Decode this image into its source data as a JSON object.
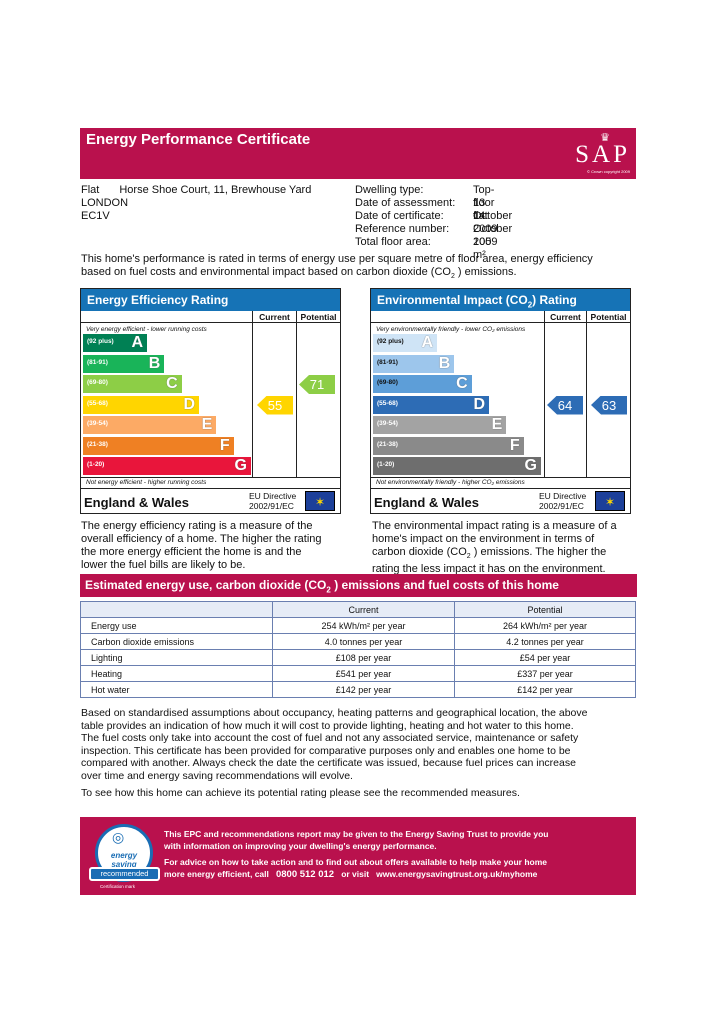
{
  "header": {
    "title": "Energy Performance Certificate",
    "logo_text": "SAP",
    "logo_copyright": "© Crown copyright 2009"
  },
  "address": {
    "line1": "Flat",
    "line1b": "Horse Shoe Court, 11, Brewhouse Yard",
    "line2": "LONDON",
    "line3": "EC1V"
  },
  "details": [
    {
      "label": "Dwelling type:",
      "value": "Top-floor flat"
    },
    {
      "label": "Date of assessment:",
      "value": "13 October 2009"
    },
    {
      "label": "Date of certificate:",
      "value": "14 October 2009"
    },
    {
      "label": "Reference number:",
      "value": ""
    },
    {
      "label": "Total floor area:",
      "value": "105 m²"
    }
  ],
  "intro": {
    "line1": "This home's performance is rated in terms of energy use per square metre of floor area, energy efficiency",
    "line2": "based on fuel costs and environmental impact based on carbon dioxide (CO",
    "sub": "2",
    "line2_end": ") emissions."
  },
  "efficiency": {
    "title": "Energy Efficiency Rating",
    "col_current": "Current",
    "col_potential": "Potential",
    "top_caption": "Very energy efficient - lower running costs",
    "bottom_caption": "Not energy efficient - higher running costs",
    "bands": [
      {
        "range": "(92 plus)",
        "letter": "A",
        "color": "#008054"
      },
      {
        "range": "(81-91)",
        "letter": "B",
        "color": "#19b459"
      },
      {
        "range": "(69-80)",
        "letter": "C",
        "color": "#8dce46"
      },
      {
        "range": "(55-68)",
        "letter": "D",
        "color": "#ffd500"
      },
      {
        "range": "(39-54)",
        "letter": "E",
        "color": "#fcaa65"
      },
      {
        "range": "(21-38)",
        "letter": "F",
        "color": "#ef8023"
      },
      {
        "range": "(1-20)",
        "letter": "G",
        "color": "#e9153b"
      }
    ],
    "current": "55",
    "current_color": "#ffd500",
    "potential": "71",
    "potential_color": "#8dce46",
    "footer": "England & Wales",
    "directive1": "EU Directive",
    "directive2": "2002/91/EC",
    "desc": [
      "The energy efficiency rating is a measure of the",
      "overall efficiency of a home. The higher the rating",
      "the more energy efficient the home is and the",
      "lower the fuel bills are likely to be."
    ]
  },
  "environmental": {
    "title": "Environmental Impact (CO",
    "title_sub": "2",
    "title_end": ") Rating",
    "col_current": "Current",
    "col_potential": "Potential",
    "top_caption": "Very environmentally friendly - lower CO₂ emissions",
    "bottom_caption": "Not environmentally friendly - higher CO₂ emissions",
    "bands": [
      {
        "range": "(92 plus)",
        "letter": "A",
        "color": "#cfe4f6"
      },
      {
        "range": "(81-91)",
        "letter": "B",
        "color": "#9dc6ec"
      },
      {
        "range": "(69-80)",
        "letter": "C",
        "color": "#5d9ed8"
      },
      {
        "range": "(55-68)",
        "letter": "D",
        "color": "#2d6cb5"
      },
      {
        "range": "(39-54)",
        "letter": "E",
        "color": "#a3a3a3"
      },
      {
        "range": "(21-38)",
        "letter": "F",
        "color": "#8a8a8a"
      },
      {
        "range": "(1-20)",
        "letter": "G",
        "color": "#6e6e6e"
      }
    ],
    "current": "64",
    "current_color": "#2d6cb5",
    "potential": "63",
    "potential_color": "#2d6cb5",
    "footer": "England & Wales",
    "directive1": "EU Directive",
    "directive2": "2002/91/EC",
    "desc1": "The environmental impact rating is a measure of a",
    "desc2": "home's impact on the environment in terms of",
    "desc3a": "carbon dioxide (CO",
    "desc3sub": "2",
    "desc3b": ") emissions. The higher the",
    "desc4": "rating the less impact it has on the environment."
  },
  "estimated": {
    "title": "Estimated energy use, carbon dioxide (CO",
    "title_sub": "2",
    "title_end": ") emissions and fuel costs of this home",
    "col_current": "Current",
    "col_potential": "Potential",
    "rows": [
      {
        "label": "Energy use",
        "current": "254 kWh/m² per year",
        "potential": "264 kWh/m² per year"
      },
      {
        "label": "Carbon dioxide emissions",
        "current": "4.0 tonnes per year",
        "potential": "4.2 tonnes per year"
      },
      {
        "label": "Lighting",
        "current": "£108 per year",
        "potential": "£54 per year"
      },
      {
        "label": "Heating",
        "current": "£541 per year",
        "potential": "£337 per year"
      },
      {
        "label": "Hot water",
        "current": "£142 per year",
        "potential": "£142 per year"
      }
    ]
  },
  "assumptions": [
    "Based on standardised assumptions about occupancy, heating patterns and geographical location, the above",
    "table provides an indication of how much it will cost to provide lighting, heating and hot water to this home.",
    "The fuel costs only take into account the cost of fuel and not any associated service, maintenance or safety",
    "inspection.  This certificate has been provided for comparative purposes only and enables one home to be",
    "compared with another.  Always check the date the certificate was issued, because fuel prices can increase",
    "over time and energy saving recommendations will evolve."
  ],
  "see_measures": "To see how this home can achieve its potential rating please see the recommended measures.",
  "promo": {
    "line1": "This EPC and recommendations report may be given to the Energy Saving Trust to provide you",
    "line2": "with information on improving your dwelling's energy performance.",
    "line3": "For advice on how to take action and to find out about offers available to help make your home",
    "line4a": "more energy efficient, call",
    "phone": "0800 512 012",
    "line4b": "or visit",
    "url": "www.energysavingtrust.org.uk/myhome",
    "badge_text": "energy saving",
    "badge_recommended": "recommended",
    "badge_caption": "Certification mark"
  }
}
